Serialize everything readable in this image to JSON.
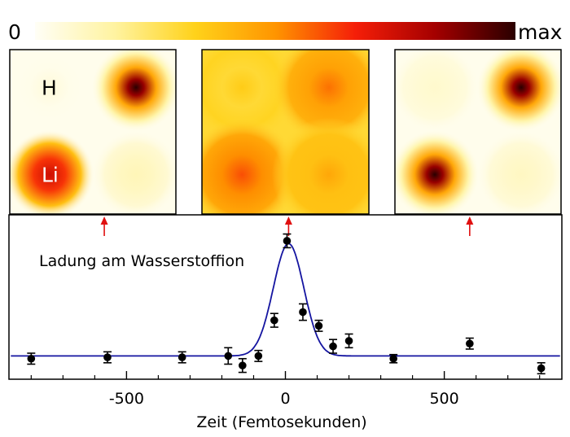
{
  "colorbar": {
    "min_label": "0",
    "max_label": "max",
    "colors": [
      "#fffef6",
      "#fff3a0",
      "#ffd21a",
      "#ff9500",
      "#f51e08",
      "#a40000",
      "#2a0000"
    ]
  },
  "panels": [
    {
      "name": "before",
      "atoms": [
        {
          "label": "H",
          "row": 0,
          "col": 0,
          "intensity": 0.05,
          "sharp": true
        },
        {
          "label": "",
          "row": 0,
          "col": 1,
          "intensity": 1.0,
          "sharp": true
        },
        {
          "label": "Li",
          "row": 1,
          "col": 0,
          "intensity": 0.75,
          "sharp": false
        },
        {
          "label": "",
          "row": 1,
          "col": 1,
          "intensity": 0.12,
          "sharp": false
        }
      ]
    },
    {
      "name": "during",
      "atoms": [
        {
          "label": "",
          "row": 0,
          "col": 0,
          "intensity": 0.35,
          "sharp": false
        },
        {
          "label": "",
          "row": 0,
          "col": 1,
          "intensity": 0.55,
          "sharp": false
        },
        {
          "label": "",
          "row": 1,
          "col": 0,
          "intensity": 0.6,
          "sharp": false
        },
        {
          "label": "",
          "row": 1,
          "col": 1,
          "intensity": 0.45,
          "sharp": false
        }
      ]
    },
    {
      "name": "after",
      "atoms": [
        {
          "label": "",
          "row": 0,
          "col": 0,
          "intensity": 0.08,
          "sharp": false
        },
        {
          "label": "",
          "row": 0,
          "col": 1,
          "intensity": 1.0,
          "sharp": true
        },
        {
          "label": "",
          "row": 1,
          "col": 0,
          "intensity": 1.0,
          "sharp": true
        },
        {
          "label": "",
          "row": 1,
          "col": 1,
          "intensity": 0.1,
          "sharp": false
        }
      ]
    }
  ],
  "markers": [
    -570,
    10,
    580
  ],
  "chart_data": {
    "type": "scatter",
    "title": "",
    "series_label": "Ladung am Wasserstoffion",
    "xlabel": "Zeit (Femtosekunden)",
    "ylabel": "",
    "xlim": [
      -870,
      870
    ],
    "ylim": [
      0,
      1.2
    ],
    "xticks": [
      -500,
      0,
      500
    ],
    "xtick_labels": [
      "-500",
      "0",
      "500"
    ],
    "minor_xticks": [
      -800,
      -700,
      -600,
      -400,
      -300,
      -200,
      -100,
      100,
      200,
      300,
      400,
      600,
      700,
      800
    ],
    "points": [
      {
        "x": -800,
        "y": 0.15,
        "err": 0.04
      },
      {
        "x": -560,
        "y": 0.16,
        "err": 0.04
      },
      {
        "x": -325,
        "y": 0.16,
        "err": 0.04
      },
      {
        "x": -180,
        "y": 0.17,
        "err": 0.06
      },
      {
        "x": -135,
        "y": 0.1,
        "err": 0.05
      },
      {
        "x": -85,
        "y": 0.17,
        "err": 0.04
      },
      {
        "x": -35,
        "y": 0.43,
        "err": 0.05
      },
      {
        "x": 5,
        "y": 1.01,
        "err": 0.05
      },
      {
        "x": 55,
        "y": 0.49,
        "err": 0.06
      },
      {
        "x": 105,
        "y": 0.39,
        "err": 0.04
      },
      {
        "x": 150,
        "y": 0.24,
        "err": 0.05
      },
      {
        "x": 200,
        "y": 0.28,
        "err": 0.05
      },
      {
        "x": 340,
        "y": 0.15,
        "err": 0.03
      },
      {
        "x": 580,
        "y": 0.26,
        "err": 0.04
      },
      {
        "x": 805,
        "y": 0.08,
        "err": 0.04
      }
    ],
    "fit": {
      "type": "gaussian",
      "baseline": 0.17,
      "amplitude": 0.82,
      "center": 10,
      "sigma": 48,
      "color": "#1414a0"
    }
  }
}
